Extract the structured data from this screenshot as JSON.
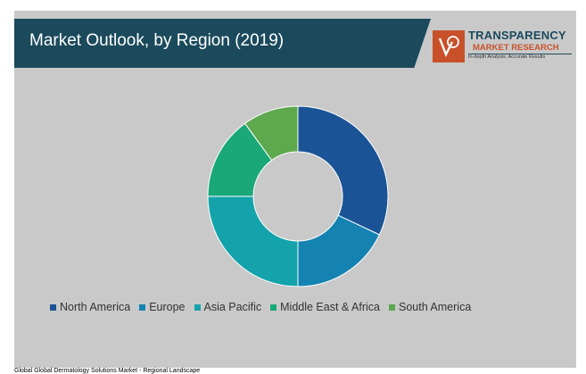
{
  "header": {
    "title": "Market Outlook, by Region (2019)"
  },
  "logo": {
    "line1": "TRANSPARENCY",
    "line2": "MARKET RESEARCH",
    "line3": "In-depth Analysis. Accurate Results",
    "brand_color": "#1b4a5c",
    "accent_color": "#c8512a"
  },
  "chart_data": {
    "type": "pie",
    "variant": "donut",
    "title": "Market Outlook, by Region (2019)",
    "legend_position": "bottom",
    "categories": [
      "North America",
      "Europe",
      "Asia Pacific",
      "Middle East & Africa",
      "South America"
    ],
    "values": [
      32,
      18,
      25,
      15,
      10
    ],
    "unit": "%",
    "colors": [
      "#1a5496",
      "#1483b2",
      "#14a3ab",
      "#1ba878",
      "#5ea84e"
    ]
  },
  "footer": {
    "text": "Global Global Dermatology Solutions Market - Regional Landscape"
  }
}
